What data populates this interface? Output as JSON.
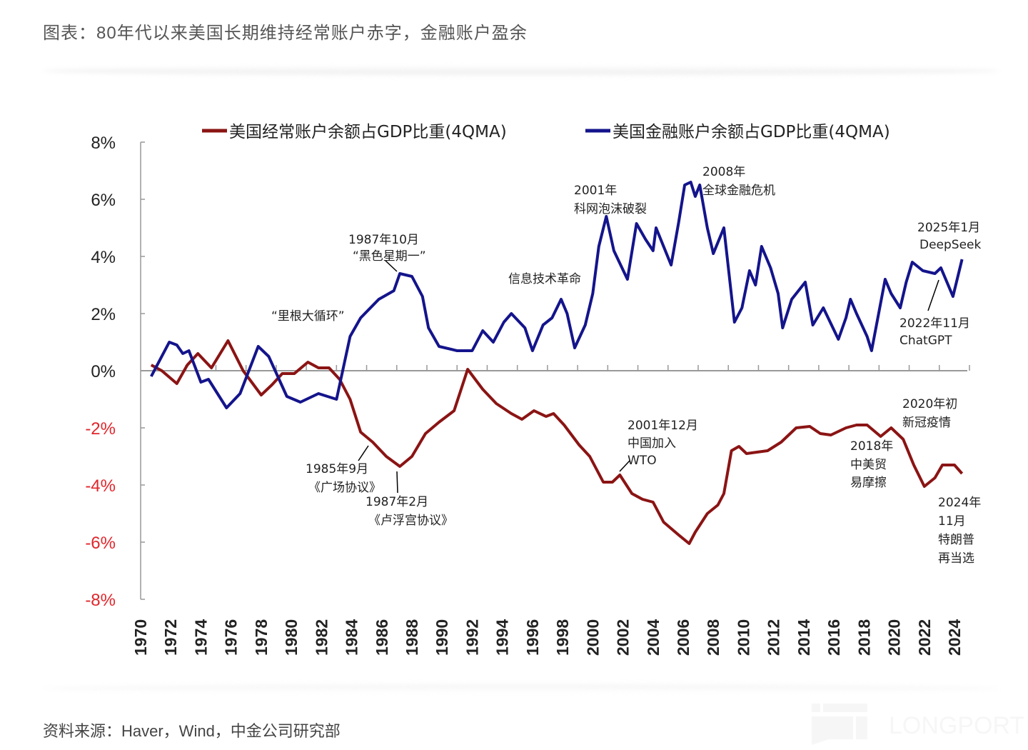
{
  "header": {
    "title": "图表：80年代以来美国长期维持经常账户赤字，金融账户盈余"
  },
  "footer": {
    "source": "资料来源：Haver，Wind，中金公司研究部",
    "watermark": "LONGPORT"
  },
  "colors": {
    "current_account": "#8B1414",
    "financial_account": "#14148C",
    "negative_tick": "#E0262B",
    "axis": "#999999"
  },
  "chart_data": {
    "type": "line",
    "title": "",
    "xlabel": "",
    "ylabel": "",
    "xlim": [
      1970,
      2025
    ],
    "ylim": [
      -8,
      8
    ],
    "yticks": [
      8,
      6,
      4,
      2,
      0,
      -2,
      -4,
      -6,
      -8
    ],
    "ytick_labels": [
      "8%",
      "6%",
      "4%",
      "2%",
      "0%",
      "-2%",
      "-4%",
      "-6%",
      "-8%"
    ],
    "xtick_labels": [
      "1970",
      "1972",
      "1974",
      "1976",
      "1978",
      "1980",
      "1982",
      "1984",
      "1986",
      "1988",
      "1990",
      "1992",
      "1994",
      "1996",
      "1998",
      "2000",
      "2002",
      "2004",
      "2006",
      "2008",
      "2010",
      "2012",
      "2014",
      "2016",
      "2018",
      "2020",
      "2022",
      "2024"
    ],
    "legend_position": "top",
    "grid": false,
    "series": [
      {
        "name": "美国经常账户余额占GDP比重(4QMA)",
        "color": "#8B1414",
        "x": [
          1970.7,
          1971.4,
          1972.4,
          1973.1,
          1973.8,
          1974.7,
          1975.8,
          1976.8,
          1978.0,
          1978.7,
          1979.4,
          1980.2,
          1981.1,
          1981.8,
          1982.5,
          1983.2,
          1983.9,
          1984.6,
          1985.4,
          1986.3,
          1987.2,
          1988.0,
          1988.9,
          1989.8,
          1990.8,
          1991.7,
          1992.7,
          1993.6,
          1994.6,
          1995.3,
          1996.1,
          1996.9,
          1997.4,
          1998.1,
          1999.1,
          1999.8,
          2000.7,
          2001.3,
          2001.8,
          2002.6,
          2003.3,
          2004.0,
          2004.7,
          2005.7,
          2006.4,
          2006.8,
          2007.6,
          2008.3,
          2008.7,
          2009.2,
          2009.7,
          2010.2,
          2010.9,
          2011.6,
          2012.5,
          2013.5,
          2014.4,
          2015.1,
          2015.8,
          2016.8,
          2017.5,
          2018.2,
          2019.1,
          2019.8,
          2020.6,
          2021.3,
          2022.0,
          2022.7,
          2023.2,
          2024.0,
          2024.5
        ],
        "y": [
          0.2,
          0.0,
          -0.45,
          0.2,
          0.6,
          0.1,
          1.05,
          0.0,
          -0.85,
          -0.5,
          -0.1,
          -0.1,
          0.3,
          0.1,
          0.1,
          -0.3,
          -1.0,
          -2.15,
          -2.5,
          -3.0,
          -3.35,
          -3.0,
          -2.2,
          -1.8,
          -1.4,
          0.05,
          -0.65,
          -1.15,
          -1.5,
          -1.7,
          -1.4,
          -1.6,
          -1.5,
          -1.9,
          -2.6,
          -3.0,
          -3.9,
          -3.9,
          -3.65,
          -4.3,
          -4.5,
          -4.6,
          -5.3,
          -5.75,
          -6.05,
          -5.65,
          -5.0,
          -4.7,
          -4.3,
          -2.8,
          -2.65,
          -2.9,
          -2.85,
          -2.8,
          -2.5,
          -2.0,
          -1.95,
          -2.2,
          -2.25,
          -2.0,
          -1.9,
          -1.9,
          -2.3,
          -2.0,
          -2.4,
          -3.3,
          -4.05,
          -3.75,
          -3.3,
          -3.3,
          -3.6
        ]
      },
      {
        "name": "美国金融账户余额占GDP比重(4QMA)",
        "color": "#14148C",
        "x": [
          1970.7,
          1971.9,
          1972.4,
          1972.8,
          1973.2,
          1974.0,
          1974.5,
          1975.7,
          1976.6,
          1977.8,
          1978.5,
          1979.7,
          1980.6,
          1981.8,
          1983.0,
          1983.9,
          1984.6,
          1985.8,
          1986.8,
          1987.2,
          1988.0,
          1988.7,
          1989.1,
          1989.8,
          1991.0,
          1992.0,
          1992.7,
          1993.4,
          1994.1,
          1994.6,
          1995.5,
          1996.0,
          1996.7,
          1997.3,
          1997.9,
          1998.3,
          1998.8,
          1999.5,
          2000.0,
          2000.4,
          2000.9,
          2001.4,
          2002.3,
          2002.9,
          2003.5,
          2004.0,
          2004.2,
          2005.2,
          2005.7,
          2006.1,
          2006.5,
          2006.8,
          2007.1,
          2007.6,
          2008.0,
          2008.7,
          2009.4,
          2009.9,
          2010.4,
          2010.8,
          2011.2,
          2011.8,
          2012.3,
          2012.6,
          2013.2,
          2014.1,
          2014.6,
          2015.3,
          2016.3,
          2016.8,
          2017.1,
          2017.5,
          2018.2,
          2018.5,
          2019.4,
          2019.8,
          2020.4,
          2020.8,
          2021.2,
          2021.9,
          2022.7,
          2023.1,
          2023.9,
          2024.5
        ],
        "y": [
          -0.2,
          1.0,
          0.9,
          0.6,
          0.7,
          -0.4,
          -0.3,
          -1.3,
          -0.8,
          0.85,
          0.5,
          -0.9,
          -1.1,
          -0.8,
          -1.0,
          1.2,
          1.85,
          2.5,
          2.8,
          3.4,
          3.3,
          2.6,
          1.5,
          0.85,
          0.7,
          0.7,
          1.4,
          1.0,
          1.7,
          2.0,
          1.5,
          0.7,
          1.6,
          1.85,
          2.5,
          2.0,
          0.8,
          1.6,
          2.7,
          4.35,
          5.4,
          4.2,
          3.2,
          5.15,
          4.6,
          4.2,
          5.0,
          3.7,
          5.2,
          6.5,
          6.6,
          6.1,
          6.5,
          5.0,
          4.1,
          5.0,
          1.7,
          2.2,
          3.5,
          3.0,
          4.35,
          3.6,
          2.7,
          1.5,
          2.5,
          3.1,
          1.6,
          2.2,
          1.1,
          1.85,
          2.5,
          2.0,
          1.2,
          0.7,
          3.2,
          2.7,
          2.2,
          3.1,
          3.8,
          3.5,
          3.4,
          3.6,
          2.6,
          3.9
        ]
      }
    ],
    "annotations": {
      "reagan": "“里根大循环”",
      "black_monday_1": "1987年10月",
      "black_monday_2": "“黑色星期一”",
      "it_revolution": "信息技术革命",
      "dotcom_1": "2001年",
      "dotcom_2": "科网泡沫破裂",
      "gfc_1": "2008年",
      "gfc_2": "全球金融危机",
      "deepseek_1": "2025年1月",
      "deepseek_2": "DeepSeek",
      "chatgpt_1": "2022年11月",
      "chatgpt_2": "ChatGPT",
      "plaza_1": "1985年9月",
      "plaza_2": "《广场协议》",
      "louvre_1": "1987年2月",
      "louvre_2": "《卢浮宫协议》",
      "wto_1": "2001年12月",
      "wto_2": "中国加入",
      "wto_3": "WTO",
      "covid_1": "2020年初",
      "covid_2": "新冠疫情",
      "trade_1": "2018年",
      "trade_2": "中美贸",
      "trade_3": "易摩擦",
      "trump_1": "2024年",
      "trump_2": "11月",
      "trump_3": "特朗普",
      "trump_4": "再当选"
    }
  }
}
